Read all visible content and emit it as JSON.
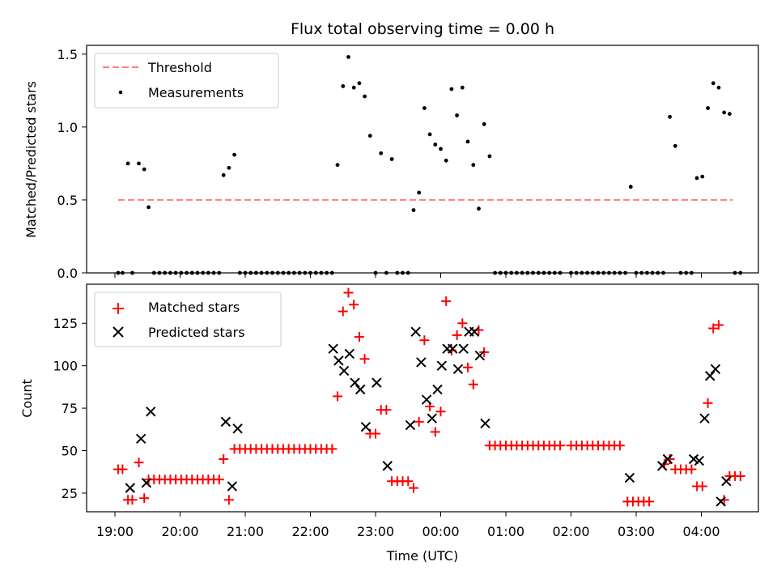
{
  "colors": {
    "threshold": "#ff7f7f",
    "measurements": "#000000",
    "matched": "#ff0000",
    "predicted": "#000000"
  },
  "chart_data": [
    {
      "type": "scatter",
      "title": "Flux total observing time = 0.00 h",
      "xlabel": "",
      "ylabel": "Matched/Predicted stars",
      "ylim": [
        0,
        1.56
      ],
      "yticks": [
        "0.0",
        "0.5",
        "1.0",
        "1.5"
      ],
      "grid": false,
      "legend_position": "top-left",
      "threshold": {
        "name": "Threshold",
        "value": 0.5,
        "x_start": "19:03",
        "x_end": "04:29"
      },
      "measurements": {
        "name": "Measurements",
        "points": [
          [
            "19:03",
            0
          ],
          [
            "19:07",
            0
          ],
          [
            "19:12",
            0.75
          ],
          [
            "19:16",
            0
          ],
          [
            "19:22",
            0.75
          ],
          [
            "19:27",
            0.71
          ],
          [
            "19:31",
            0.45
          ],
          [
            "19:36",
            0
          ],
          [
            "19:41",
            0
          ],
          [
            "19:46",
            0
          ],
          [
            "19:51",
            0
          ],
          [
            "19:56",
            0
          ],
          [
            "20:01",
            0
          ],
          [
            "20:06",
            0
          ],
          [
            "20:11",
            0
          ],
          [
            "20:16",
            0
          ],
          [
            "20:21",
            0
          ],
          [
            "20:26",
            0
          ],
          [
            "20:31",
            0
          ],
          [
            "20:36",
            0
          ],
          [
            "20:40",
            0.67
          ],
          [
            "20:45",
            0.72
          ],
          [
            "20:50",
            0.81
          ],
          [
            "20:55",
            0
          ],
          [
            "21:00",
            0
          ],
          [
            "21:05",
            0
          ],
          [
            "21:10",
            0
          ],
          [
            "21:15",
            0
          ],
          [
            "21:20",
            0
          ],
          [
            "21:25",
            0
          ],
          [
            "21:30",
            0
          ],
          [
            "21:35",
            0
          ],
          [
            "21:40",
            0
          ],
          [
            "21:45",
            0
          ],
          [
            "21:50",
            0
          ],
          [
            "21:55",
            0
          ],
          [
            "22:00",
            0
          ],
          [
            "22:05",
            0
          ],
          [
            "22:10",
            0
          ],
          [
            "22:15",
            0
          ],
          [
            "22:20",
            0
          ],
          [
            "22:25",
            0.74
          ],
          [
            "22:30",
            1.28
          ],
          [
            "22:35",
            1.48
          ],
          [
            "22:40",
            1.27
          ],
          [
            "22:45",
            1.3
          ],
          [
            "22:50",
            1.21
          ],
          [
            "22:55",
            0.94
          ],
          [
            "23:00",
            0
          ],
          [
            "23:05",
            0.82
          ],
          [
            "23:10",
            0
          ],
          [
            "23:15",
            0.78
          ],
          [
            "23:20",
            0
          ],
          [
            "23:25",
            0
          ],
          [
            "23:30",
            0
          ],
          [
            "23:35",
            0.43
          ],
          [
            "23:40",
            0.55
          ],
          [
            "23:45",
            1.13
          ],
          [
            "23:50",
            0.95
          ],
          [
            "23:55",
            0.88
          ],
          [
            "00:00",
            0.85
          ],
          [
            "00:05",
            0.77
          ],
          [
            "00:10",
            1.26
          ],
          [
            "00:15",
            1.08
          ],
          [
            "00:20",
            1.27
          ],
          [
            "00:25",
            0.9
          ],
          [
            "00:30",
            0.74
          ],
          [
            "00:35",
            0.44
          ],
          [
            "00:40",
            1.02
          ],
          [
            "00:45",
            0.8
          ],
          [
            "00:50",
            0
          ],
          [
            "00:55",
            0
          ],
          [
            "01:00",
            0
          ],
          [
            "01:05",
            0
          ],
          [
            "01:10",
            0
          ],
          [
            "01:15",
            0
          ],
          [
            "01:20",
            0
          ],
          [
            "01:25",
            0
          ],
          [
            "01:30",
            0
          ],
          [
            "01:35",
            0
          ],
          [
            "01:40",
            0
          ],
          [
            "01:45",
            0
          ],
          [
            "01:50",
            0
          ],
          [
            "02:00",
            0
          ],
          [
            "02:05",
            0
          ],
          [
            "02:10",
            0
          ],
          [
            "02:15",
            0
          ],
          [
            "02:20",
            0
          ],
          [
            "02:25",
            0
          ],
          [
            "02:30",
            0
          ],
          [
            "02:35",
            0
          ],
          [
            "02:40",
            0
          ],
          [
            "02:45",
            0
          ],
          [
            "02:50",
            0
          ],
          [
            "02:55",
            0.59
          ],
          [
            "03:00",
            0
          ],
          [
            "03:05",
            0
          ],
          [
            "03:10",
            0
          ],
          [
            "03:15",
            0
          ],
          [
            "03:20",
            0
          ],
          [
            "03:25",
            0
          ],
          [
            "03:31",
            1.07
          ],
          [
            "03:36",
            0.87
          ],
          [
            "03:41",
            0
          ],
          [
            "03:46",
            0
          ],
          [
            "03:51",
            0
          ],
          [
            "03:56",
            0.65
          ],
          [
            "04:01",
            0.66
          ],
          [
            "04:06",
            1.13
          ],
          [
            "04:11",
            1.3
          ],
          [
            "04:16",
            1.27
          ],
          [
            "04:21",
            1.1
          ],
          [
            "04:26",
            1.09
          ],
          [
            "04:31",
            0
          ],
          [
            "04:36",
            0
          ]
        ]
      }
    },
    {
      "type": "scatter",
      "title": "",
      "xlabel": "Time (UTC)",
      "ylabel": "Count",
      "ylim": [
        14,
        148
      ],
      "yticks": [
        "25",
        "50",
        "75",
        "100",
        "125"
      ],
      "xticks": [
        "19:00",
        "20:00",
        "21:00",
        "22:00",
        "23:00",
        "00:00",
        "01:00",
        "02:00",
        "03:00",
        "04:00"
      ],
      "grid": false,
      "legend_position": "top-left",
      "series": [
        {
          "name": "Matched stars",
          "marker": "plus",
          "points": [
            [
              "19:03",
              39
            ],
            [
              "19:07",
              39
            ],
            [
              "19:12",
              21
            ],
            [
              "19:16",
              21
            ],
            [
              "19:22",
              43
            ],
            [
              "19:27",
              22
            ],
            [
              "19:31",
              33
            ],
            [
              "19:36",
              33
            ],
            [
              "19:41",
              33
            ],
            [
              "19:46",
              33
            ],
            [
              "19:51",
              33
            ],
            [
              "19:56",
              33
            ],
            [
              "20:01",
              33
            ],
            [
              "20:06",
              33
            ],
            [
              "20:11",
              33
            ],
            [
              "20:16",
              33
            ],
            [
              "20:21",
              33
            ],
            [
              "20:26",
              33
            ],
            [
              "20:31",
              33
            ],
            [
              "20:36",
              33
            ],
            [
              "20:40",
              45
            ],
            [
              "20:45",
              21
            ],
            [
              "20:50",
              51
            ],
            [
              "20:55",
              51
            ],
            [
              "21:00",
              51
            ],
            [
              "21:05",
              51
            ],
            [
              "21:10",
              51
            ],
            [
              "21:15",
              51
            ],
            [
              "21:20",
              51
            ],
            [
              "21:25",
              51
            ],
            [
              "21:30",
              51
            ],
            [
              "21:35",
              51
            ],
            [
              "21:40",
              51
            ],
            [
              "21:45",
              51
            ],
            [
              "21:50",
              51
            ],
            [
              "21:55",
              51
            ],
            [
              "22:00",
              51
            ],
            [
              "22:05",
              51
            ],
            [
              "22:10",
              51
            ],
            [
              "22:15",
              51
            ],
            [
              "22:20",
              51
            ],
            [
              "22:25",
              82
            ],
            [
              "22:30",
              132
            ],
            [
              "22:35",
              143
            ],
            [
              "22:40",
              136
            ],
            [
              "22:45",
              117
            ],
            [
              "22:50",
              104
            ],
            [
              "22:55",
              60
            ],
            [
              "23:00",
              60
            ],
            [
              "23:05",
              74
            ],
            [
              "23:10",
              74
            ],
            [
              "23:15",
              32
            ],
            [
              "23:20",
              32
            ],
            [
              "23:25",
              32
            ],
            [
              "23:30",
              32
            ],
            [
              "23:35",
              28
            ],
            [
              "23:40",
              67
            ],
            [
              "23:45",
              115
            ],
            [
              "23:50",
              76
            ],
            [
              "23:55",
              61
            ],
            [
              "00:00",
              73
            ],
            [
              "00:05",
              138
            ],
            [
              "00:10",
              109
            ],
            [
              "00:15",
              118
            ],
            [
              "00:20",
              125
            ],
            [
              "00:25",
              99
            ],
            [
              "00:30",
              89
            ],
            [
              "00:35",
              121
            ],
            [
              "00:40",
              108
            ],
            [
              "00:45",
              53
            ],
            [
              "00:50",
              53
            ],
            [
              "00:55",
              53
            ],
            [
              "01:00",
              53
            ],
            [
              "01:05",
              53
            ],
            [
              "01:10",
              53
            ],
            [
              "01:15",
              53
            ],
            [
              "01:20",
              53
            ],
            [
              "01:25",
              53
            ],
            [
              "01:30",
              53
            ],
            [
              "01:35",
              53
            ],
            [
              "01:40",
              53
            ],
            [
              "01:45",
              53
            ],
            [
              "01:50",
              53
            ],
            [
              "02:00",
              53
            ],
            [
              "02:05",
              53
            ],
            [
              "02:10",
              53
            ],
            [
              "02:15",
              53
            ],
            [
              "02:20",
              53
            ],
            [
              "02:25",
              53
            ],
            [
              "02:30",
              53
            ],
            [
              "02:35",
              53
            ],
            [
              "02:40",
              53
            ],
            [
              "02:45",
              53
            ],
            [
              "02:52",
              20
            ],
            [
              "02:57",
              20
            ],
            [
              "03:02",
              20
            ],
            [
              "03:07",
              20
            ],
            [
              "03:12",
              20
            ],
            [
              "03:26",
              42
            ],
            [
              "03:31",
              45
            ],
            [
              "03:36",
              39
            ],
            [
              "03:41",
              39
            ],
            [
              "03:46",
              39
            ],
            [
              "03:51",
              39
            ],
            [
              "03:56",
              29
            ],
            [
              "04:01",
              29
            ],
            [
              "04:06",
              78
            ],
            [
              "04:11",
              122
            ],
            [
              "04:16",
              124
            ],
            [
              "04:21",
              21
            ],
            [
              "04:26",
              35
            ],
            [
              "04:31",
              35
            ],
            [
              "04:36",
              35
            ]
          ]
        },
        {
          "name": "Predicted stars",
          "marker": "x",
          "points": [
            [
              "19:14",
              28
            ],
            [
              "19:24",
              57
            ],
            [
              "19:29",
              31
            ],
            [
              "19:33",
              73
            ],
            [
              "20:42",
              67
            ],
            [
              "20:48",
              29
            ],
            [
              "20:53",
              63
            ],
            [
              "22:21",
              110
            ],
            [
              "22:26",
              103
            ],
            [
              "22:31",
              97
            ],
            [
              "22:36",
              107
            ],
            [
              "22:41",
              90
            ],
            [
              "22:46",
              86
            ],
            [
              "22:51",
              64
            ],
            [
              "23:01",
              90
            ],
            [
              "23:11",
              41
            ],
            [
              "23:32",
              65
            ],
            [
              "23:37",
              120
            ],
            [
              "23:42",
              102
            ],
            [
              "23:47",
              80
            ],
            [
              "23:52",
              69
            ],
            [
              "23:57",
              86
            ],
            [
              "00:01",
              100
            ],
            [
              "00:06",
              110
            ],
            [
              "00:11",
              110
            ],
            [
              "00:16",
              98
            ],
            [
              "00:21",
              110
            ],
            [
              "00:26",
              120
            ],
            [
              "00:31",
              120
            ],
            [
              "00:36",
              106
            ],
            [
              "00:41",
              66
            ],
            [
              "02:54",
              34
            ],
            [
              "03:24",
              41
            ],
            [
              "03:29",
              45
            ],
            [
              "03:53",
              45
            ],
            [
              "03:58",
              44
            ],
            [
              "04:03",
              69
            ],
            [
              "04:08",
              94
            ],
            [
              "04:13",
              98
            ],
            [
              "04:18",
              20
            ],
            [
              "04:23",
              32
            ]
          ]
        }
      ]
    }
  ]
}
